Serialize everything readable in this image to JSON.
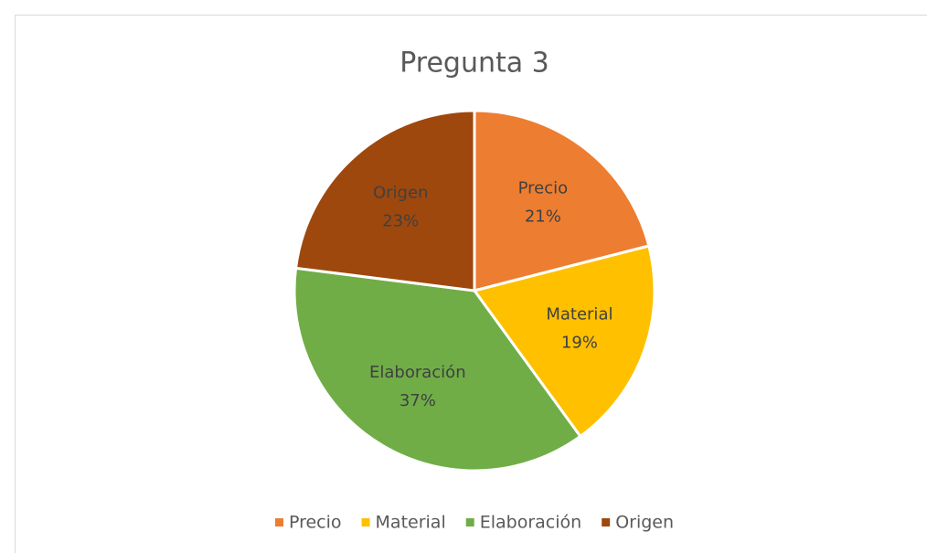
{
  "chart_data": {
    "type": "pie",
    "title": "Pregunta 3",
    "categories": [
      "Precio",
      "Material",
      "Elaboración",
      "Origen"
    ],
    "values": [
      21,
      19,
      37,
      23
    ],
    "value_labels": [
      "21%",
      "19%",
      "37%",
      "23%"
    ],
    "colors": [
      "#ED7D31",
      "#FFC000",
      "#70AD47",
      "#9E480E"
    ],
    "legend": "bottom"
  }
}
